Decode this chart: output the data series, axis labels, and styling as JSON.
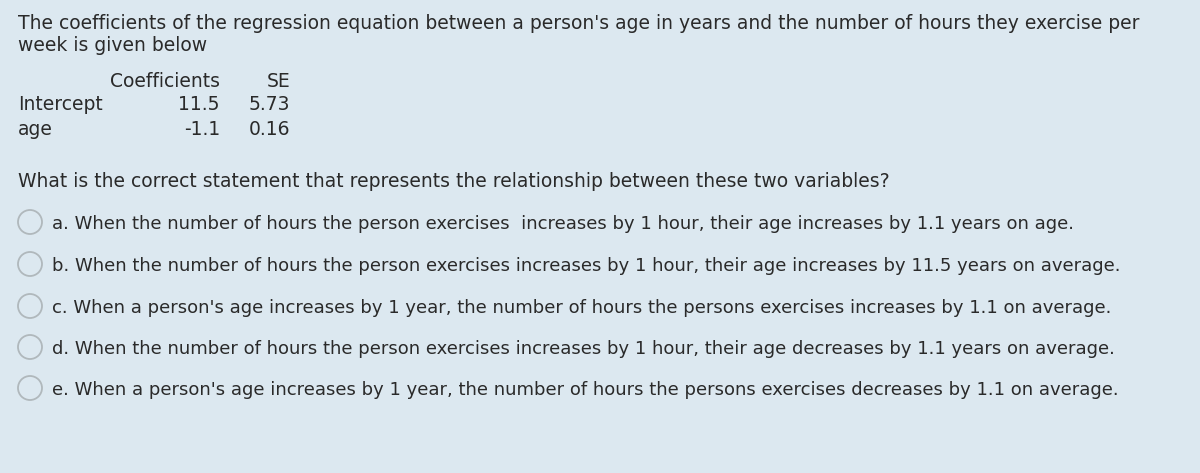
{
  "background_color": "#dce8f0",
  "intro_line1": "The coefficients of the regression equation between a person's age in years and the number of hours they exercise per",
  "intro_line2": "week is given below",
  "col_header1": "Coefficients",
  "col_header2": "SE",
  "row1_label": "Intercept",
  "row1_val1": "11.5",
  "row1_val2": "5.73",
  "row2_label": "age",
  "row2_val1": "-1.1",
  "row2_val2": "0.16",
  "question": "What is the correct statement that represents the relationship between these two variables?",
  "options": [
    "a. When the number of hours the person exercises  increases by 1 hour, their age increases by 1.1 years on age.",
    "b. When the number of hours the person exercises increases by 1 hour, their age increases by 11.5 years on average.",
    "c. When a person's age increases by 1 year, the number of hours the persons exercises increases by 1.1 on average.",
    "d. When the number of hours the person exercises increases by 1 hour, their age decreases by 1.1 years on average.",
    "e. When a person's age increases by 1 year, the number of hours the persons exercises decreases by 1.1 on average."
  ],
  "font_size": 13.5,
  "font_size_options": 13.0,
  "text_color": "#2a2a2a",
  "circle_color": "#b0b8bc",
  "fig_width": 12.0,
  "fig_height": 4.73
}
